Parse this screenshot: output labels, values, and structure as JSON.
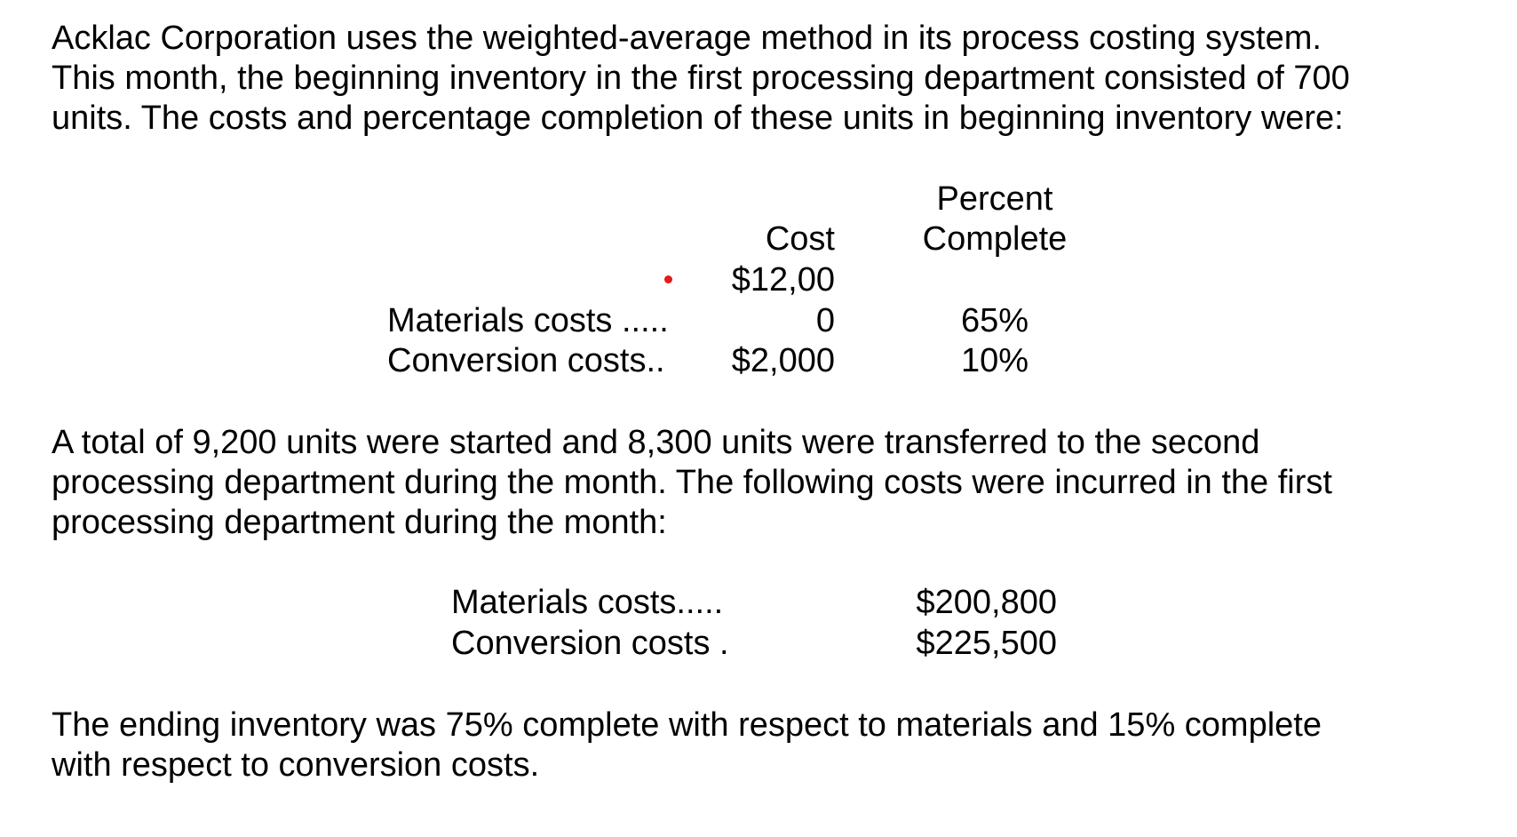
{
  "intro": [
    "Acklac Corporation uses the weighted-average method in its process costing system.",
    "This month, the beginning inventory in the first processing department consisted of 700",
    "units. The costs and percentage completion of these units in beginning inventory were:"
  ],
  "beginning_table": {
    "header_percent_line1": "Percent",
    "header_percent_line2": "Complete",
    "header_cost": "Cost",
    "rows": [
      {
        "label": "Materials costs .....",
        "cost_line1": "$12,00",
        "cost_line2": "0",
        "percent": "65%"
      },
      {
        "label": "Conversion costs..",
        "cost": "$2,000",
        "percent": "10%"
      }
    ]
  },
  "middle": [
    "A total of 9,200 units were started and 8,300 units were transferred to the second",
    "processing department during the month. The following costs were incurred in the first",
    "processing department during the month:"
  ],
  "month_costs": [
    {
      "label": "Materials costs.....",
      "amount": "$200,800"
    },
    {
      "label": "Conversion costs .",
      "amount": "$225,500"
    }
  ],
  "ending": [
    "The ending inventory was 75% complete with respect to materials and 15% complete",
    "with respect to conversion costs."
  ],
  "colors": {
    "text": "#000000",
    "bullet": "#e21b1b",
    "background": "#ffffff"
  }
}
